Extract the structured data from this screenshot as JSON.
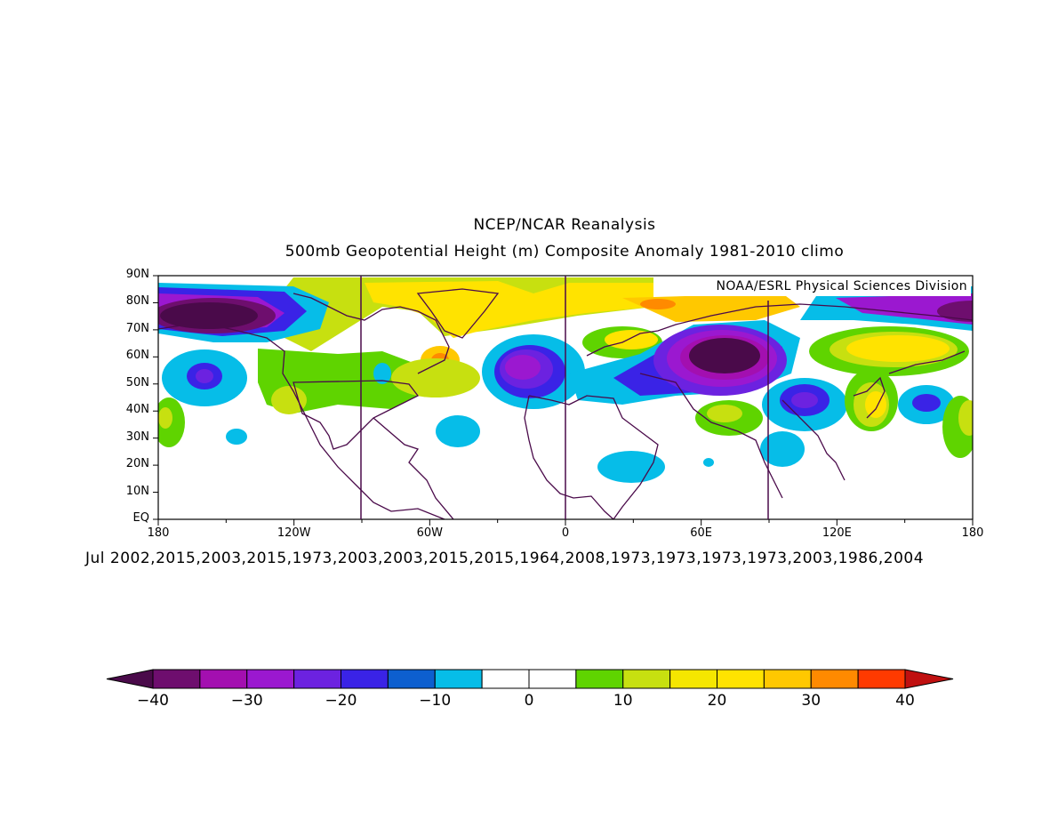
{
  "header": {
    "title": "NCEP/NCAR Reanalysis",
    "subtitle": "500mb Geopotential Height (m) Composite Anomaly 1981-2010 climo"
  },
  "map": {
    "credit": "NOAA/ESRL Physical Sciences Division",
    "lat_labels": [
      "90N",
      "80N",
      "70N",
      "60N",
      "50N",
      "40N",
      "30N",
      "20N",
      "10N",
      "EQ"
    ],
    "lon_labels": [
      "180",
      "120W",
      "60W",
      "0",
      "60E",
      "120E",
      "180"
    ],
    "dates_line": "Jul 2002,2015,2003,2015,1973,2003,2003,2015,2015,1964,2008,1973,1973,1973,1973,2003,1986,2004"
  },
  "colorbar": {
    "labels": [
      "-40",
      "-30",
      "-20",
      "-10",
      "0",
      "10",
      "20",
      "30",
      "40"
    ],
    "colors": [
      "#6e0e6e",
      "#a30fb0",
      "#9b18d0",
      "#6c22e0",
      "#3a23e6",
      "#0d5fcf",
      "#06bde8",
      "#ffffff",
      "#ffffff",
      "#5fd400",
      "#c7e010",
      "#f5e600",
      "#ffe300",
      "#ffc800",
      "#ff8a00",
      "#ff3a00"
    ],
    "low_color": "#4a0a4a",
    "high_color": "#c01010"
  }
}
